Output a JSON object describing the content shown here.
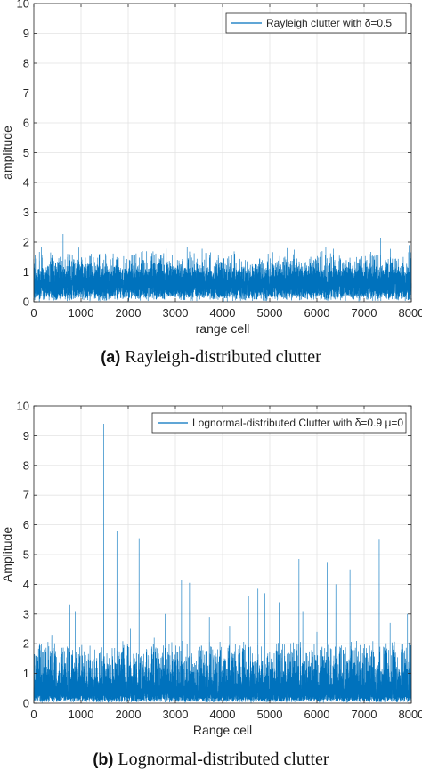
{
  "chart_data": [
    {
      "type": "line",
      "series": [
        {
          "name": "Rayleigh clutter with δ=0.5",
          "color": "#0072BD",
          "points": 8000
        }
      ],
      "xlabel": "range cell",
      "ylabel": "amplitude",
      "xlim": [
        0,
        8000
      ],
      "ylim": [
        0,
        10
      ],
      "xticks": [
        "0",
        "1000",
        "2000",
        "3000",
        "4000",
        "5000",
        "6000",
        "7000",
        "8000"
      ],
      "yticks": [
        "0",
        "1",
        "2",
        "3",
        "4",
        "5",
        "6",
        "7",
        "8",
        "9",
        "10"
      ],
      "grid": true,
      "legend_position": "top-right",
      "distribution": "rayleigh",
      "sigma": 0.5,
      "peaks": [
        {
          "x": 620,
          "y": 2.27
        },
        {
          "x": 7350,
          "y": 2.15
        },
        {
          "x": 7950,
          "y": 1.9
        }
      ]
    },
    {
      "type": "line",
      "series": [
        {
          "name": "Lognormal-distributed Clutter with δ=0.9 μ=0",
          "color": "#0072BD",
          "points": 8000
        }
      ],
      "xlabel": "Range cell",
      "ylabel": "Amplitude",
      "xlim": [
        0,
        8000
      ],
      "ylim": [
        0,
        10
      ],
      "xticks": [
        "0",
        "1000",
        "2000",
        "3000",
        "4000",
        "5000",
        "6000",
        "7000",
        "8000"
      ],
      "yticks": [
        "0",
        "1",
        "2",
        "3",
        "4",
        "5",
        "6",
        "7",
        "8",
        "9",
        "10"
      ],
      "grid": true,
      "legend_position": "top-right",
      "distribution": "lognormal",
      "sigma": 0.9,
      "mu": 0,
      "peaks": [
        {
          "x": 1480,
          "y": 9.4
        },
        {
          "x": 1760,
          "y": 5.8
        },
        {
          "x": 2230,
          "y": 5.55
        },
        {
          "x": 7320,
          "y": 5.5
        },
        {
          "x": 7800,
          "y": 5.75
        },
        {
          "x": 5620,
          "y": 4.85
        },
        {
          "x": 6220,
          "y": 4.75
        },
        {
          "x": 6700,
          "y": 4.5
        },
        {
          "x": 6400,
          "y": 4.0
        },
        {
          "x": 3130,
          "y": 4.15
        },
        {
          "x": 3300,
          "y": 4.05
        },
        {
          "x": 4750,
          "y": 3.85
        },
        {
          "x": 4900,
          "y": 3.7
        },
        {
          "x": 5200,
          "y": 3.4
        },
        {
          "x": 4550,
          "y": 3.6
        },
        {
          "x": 760,
          "y": 3.3
        },
        {
          "x": 880,
          "y": 3.1
        },
        {
          "x": 2780,
          "y": 3.0
        },
        {
          "x": 3720,
          "y": 2.9
        },
        {
          "x": 5700,
          "y": 3.1
        },
        {
          "x": 2050,
          "y": 2.5
        },
        {
          "x": 4150,
          "y": 2.6
        },
        {
          "x": 7550,
          "y": 2.7
        },
        {
          "x": 7920,
          "y": 3.0
        },
        {
          "x": 380,
          "y": 2.3
        },
        {
          "x": 2550,
          "y": 2.2
        },
        {
          "x": 6000,
          "y": 2.4
        }
      ]
    }
  ],
  "captions": [
    {
      "tag": "(a)",
      "text": "Rayleigh-distributed clutter"
    },
    {
      "tag": "(b)",
      "text": "Lognormal-distributed clutter"
    }
  ]
}
